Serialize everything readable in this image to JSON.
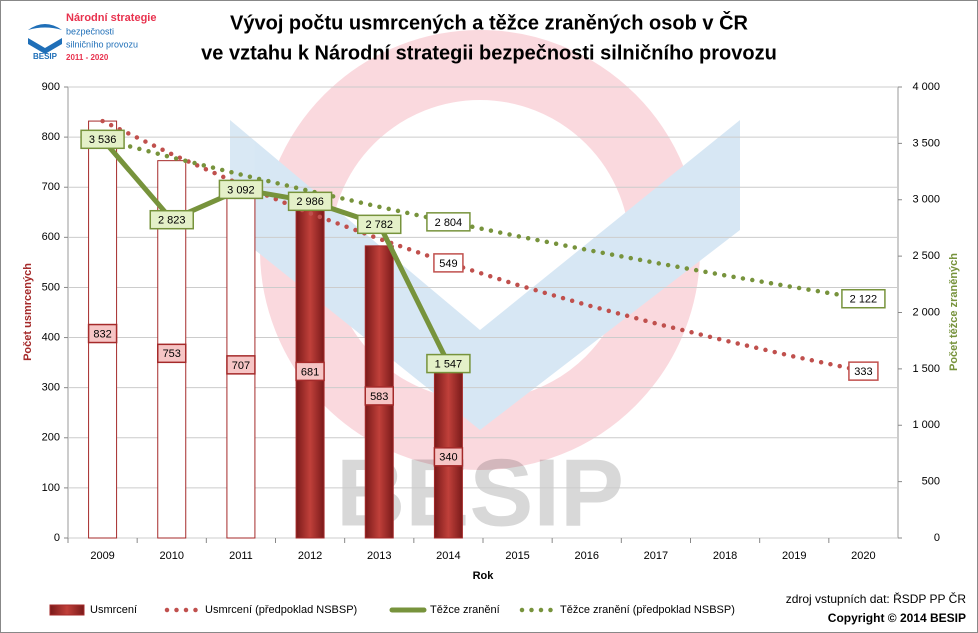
{
  "logo": {
    "lines": [
      "Národní strategie",
      "bezpečnosti",
      "silničního provozu",
      "2011 - 2020"
    ],
    "brand": "BESIP"
  },
  "watermark": "BESIP",
  "source": "zdroj vstupních dat: ŘSDP PP ČR",
  "copyright": "Copyright © 2014 BESIP",
  "chart_data": {
    "type": "bar-line",
    "title": [
      "Vývoj počtu usmrcených a těžce zraněných osob v ČR",
      "ve vztahu k Národní strategii bezpečnosti silničního provozu"
    ],
    "x_label": "Rok",
    "y_label": "Počet usmrcených",
    "y2_label": "Počet těžce zraněných",
    "categories": [
      "2009",
      "2010",
      "2011",
      "2012",
      "2013",
      "2014",
      "2015",
      "2016",
      "2017",
      "2018",
      "2019",
      "2020"
    ],
    "ylim": [
      0,
      900
    ],
    "yticks": [
      0,
      100,
      200,
      300,
      400,
      500,
      600,
      700,
      800,
      900
    ],
    "y2lim": [
      0,
      4000
    ],
    "y2ticks": [
      0,
      500,
      {
        "value": 1000,
        "label": "1 000"
      },
      {
        "value": 1500,
        "label": "1 500"
      },
      {
        "value": 2000,
        "label": "2 000"
      },
      {
        "value": 2500,
        "label": "2 500"
      },
      {
        "value": 3000,
        "label": "3 000"
      },
      {
        "value": 3500,
        "label": "3 500"
      },
      {
        "value": 4000,
        "label": "4 000"
      }
    ],
    "grid": true,
    "series": [
      {
        "name": "Usmrcení",
        "type": "bar",
        "color": "#a52a2a",
        "bar_fills": [
          "#ffffff",
          "#ffffff",
          "#ffffff",
          "#a52a2a",
          "#a52a2a",
          "#a52a2a",
          null,
          null,
          null,
          null,
          null,
          null
        ],
        "values": [
          832,
          753,
          707,
          681,
          583,
          340,
          null,
          null,
          null,
          null,
          null,
          null
        ]
      },
      {
        "name": "Usmrcení (předpoklad NSBSP)",
        "type": "dotted",
        "color": "#c0504d",
        "values": [
          832,
          766,
          705,
          648,
          597,
          549,
          505,
          465,
          428,
          394,
          362,
          333
        ],
        "value_labels": [
          null,
          null,
          null,
          null,
          null,
          "549",
          null,
          null,
          null,
          null,
          null,
          "333"
        ]
      },
      {
        "name": "Těžce zranění",
        "type": "line",
        "axis": "y2",
        "color": "#77933c",
        "values": [
          3536,
          2823,
          3092,
          2986,
          2782,
          1547,
          null,
          null,
          null,
          null,
          null,
          null
        ],
        "value_labels": [
          "3 536",
          "2 823",
          "3 092",
          "2 986",
          "2 782",
          "1 547",
          null,
          null,
          null,
          null,
          null,
          null
        ]
      },
      {
        "name": "Těžce zranění (předpoklad NSBSP)",
        "type": "dotted",
        "axis": "y2",
        "color": "#77933c",
        "values": [
          3536,
          3376,
          3223,
          3077,
          2937,
          2804,
          2677,
          2556,
          2440,
          2329,
          2224,
          2122
        ],
        "value_labels": [
          null,
          null,
          null,
          null,
          null,
          "2 804",
          null,
          null,
          null,
          null,
          null,
          "2 122"
        ]
      }
    ]
  }
}
